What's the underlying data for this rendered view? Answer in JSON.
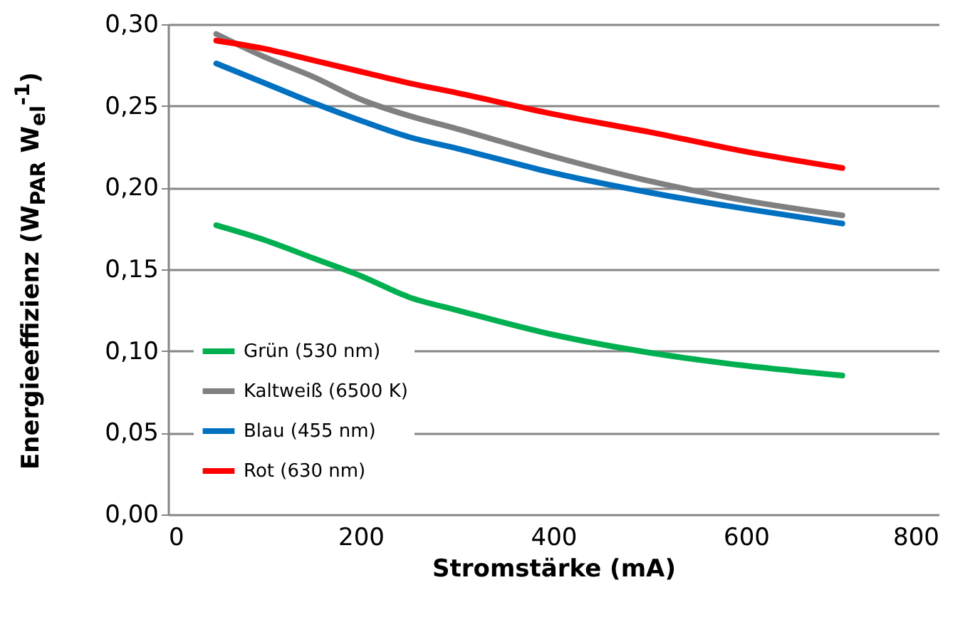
{
  "chart_data": {
    "type": "line",
    "xlabel": "Stromstärke (mA)",
    "ylabel": "Energieeffizienz (W$_{PAR}$ W$_{el}$$^{-1}$)",
    "x": [
      50,
      100,
      150,
      200,
      250,
      300,
      400,
      500,
      600,
      700
    ],
    "series": [
      {
        "name": "Grün (530 nm)",
        "color": "#00b050",
        "values": [
          0.177,
          0.168,
          0.157,
          0.146,
          0.133,
          0.125,
          0.11,
          0.099,
          0.091,
          0.085
        ]
      },
      {
        "name": "Kaltweiß (6500 K)",
        "color": "#808080",
        "values": [
          0.294,
          0.28,
          0.268,
          0.254,
          0.244,
          0.236,
          0.219,
          0.204,
          0.192,
          0.183
        ]
      },
      {
        "name": "Blau (455 nm)",
        "color": "#0070c0",
        "values": [
          0.276,
          0.264,
          0.252,
          0.241,
          0.231,
          0.224,
          0.209,
          0.197,
          0.187,
          0.178
        ]
      },
      {
        "name": "Rot (630 nm)",
        "color": "#ff0000",
        "values": [
          0.29,
          0.285,
          0.278,
          0.271,
          0.264,
          0.258,
          0.245,
          0.234,
          0.222,
          0.212
        ]
      }
    ],
    "xlim": [
      0,
      800
    ],
    "xticks": [
      0,
      200,
      400,
      600,
      800
    ],
    "ylim": [
      0,
      0.3
    ],
    "yticks": [
      {
        "value": 0,
        "label": "0,00"
      },
      {
        "value": 0.05,
        "label": "0,05"
      },
      {
        "value": 0.1,
        "label": "0,10"
      },
      {
        "value": 0.15,
        "label": "0,15"
      },
      {
        "value": 0.2,
        "label": "0,20"
      },
      {
        "value": 0.25,
        "label": "0,25"
      },
      {
        "value": 0.3,
        "label": "0,30"
      }
    ],
    "grid": "y",
    "legend": "bottom left",
    "marker": "none",
    "line_style": "solid"
  }
}
